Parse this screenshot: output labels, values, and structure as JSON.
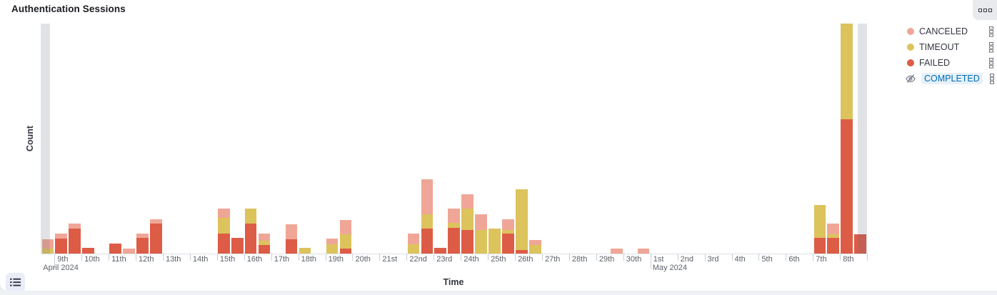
{
  "panel": {
    "title": "Authentication Sessions",
    "options_button_label": "panel options",
    "legend_toggle_label": "toggle legend"
  },
  "legend": {
    "position": "right",
    "items": [
      {
        "label": "CANCELED",
        "color": "#F0A697",
        "visible": true
      },
      {
        "label": "TIMEOUT",
        "color": "#DCC35C",
        "visible": true
      },
      {
        "label": "FAILED",
        "color": "#DD5C46",
        "visible": true
      },
      {
        "label": "COMPLETED",
        "color": "#6092C0",
        "visible": false,
        "highlighted": true
      }
    ]
  },
  "chart_data": {
    "type": "bar",
    "stacked": true,
    "title": "Authentication Sessions",
    "xlabel": "Time",
    "ylabel": "Count",
    "y_tick_labels_shown": false,
    "values_unit": "relative height units (y axis has no numeric tick labels)",
    "ylim": [
      0,
      322
    ],
    "x_range": {
      "start": "2024-04-08 12:00",
      "end": "2024-05-09 00:00",
      "bucket_interval": "12h"
    },
    "series_order_bottom_to_top": [
      "FAILED",
      "TIMEOUT",
      "CANCELED"
    ],
    "hidden_series": [
      "COMPLETED"
    ],
    "x_axis": {
      "ticks": [
        {
          "label": "9th",
          "day": 1,
          "sub": "April 2024"
        },
        {
          "label": "10th",
          "day": 2
        },
        {
          "label": "11th",
          "day": 3
        },
        {
          "label": "12th",
          "day": 4
        },
        {
          "label": "13th",
          "day": 5
        },
        {
          "label": "14th",
          "day": 6
        },
        {
          "label": "15th",
          "day": 7
        },
        {
          "label": "16th",
          "day": 8
        },
        {
          "label": "17th",
          "day": 9
        },
        {
          "label": "18th",
          "day": 10
        },
        {
          "label": "19th",
          "day": 11
        },
        {
          "label": "20th",
          "day": 12
        },
        {
          "label": "21st",
          "day": 13
        },
        {
          "label": "22nd",
          "day": 14
        },
        {
          "label": "23rd",
          "day": 15
        },
        {
          "label": "24th",
          "day": 16
        },
        {
          "label": "25th",
          "day": 17
        },
        {
          "label": "26th",
          "day": 18
        },
        {
          "label": "27th",
          "day": 19
        },
        {
          "label": "28th",
          "day": 20
        },
        {
          "label": "29th",
          "day": 21
        },
        {
          "label": "30th",
          "day": 22
        },
        {
          "label": "1st",
          "day": 23,
          "sub": "May 2024"
        },
        {
          "label": "2nd",
          "day": 24
        },
        {
          "label": "3rd",
          "day": 25
        },
        {
          "label": "4th",
          "day": 26
        },
        {
          "label": "5th",
          "day": 27
        },
        {
          "label": "6th",
          "day": 28
        },
        {
          "label": "7th",
          "day": 29
        },
        {
          "label": "8th",
          "day": 30
        }
      ],
      "month_labels": [
        {
          "label": "April 2024",
          "x_day": 0.5
        },
        {
          "label": "May 2024",
          "x_day": 23
        }
      ]
    },
    "buckets": [
      {
        "date": "Apr 8 PM",
        "day": 0,
        "half": 1,
        "failed": 0,
        "timeout": 7,
        "canceled": 13,
        "partial": true
      },
      {
        "date": "Apr 9 AM",
        "day": 1,
        "half": 0,
        "failed": 21,
        "timeout": 0,
        "canceled": 7
      },
      {
        "date": "Apr 9 PM",
        "day": 1,
        "half": 1,
        "failed": 35,
        "timeout": 0,
        "canceled": 7
      },
      {
        "date": "Apr 10 AM",
        "day": 2,
        "half": 0,
        "failed": 8,
        "timeout": 0,
        "canceled": 0
      },
      {
        "date": "Apr 11 AM",
        "day": 3,
        "half": 0,
        "failed": 14,
        "timeout": 0,
        "canceled": 0
      },
      {
        "date": "Apr 11 PM",
        "day": 3,
        "half": 1,
        "failed": 0,
        "timeout": 0,
        "canceled": 7
      },
      {
        "date": "Apr 12 AM",
        "day": 4,
        "half": 0,
        "failed": 22,
        "timeout": 0,
        "canceled": 6
      },
      {
        "date": "Apr 12 PM",
        "day": 4,
        "half": 1,
        "failed": 42,
        "timeout": 0,
        "canceled": 6
      },
      {
        "date": "Apr 15 AM",
        "day": 7,
        "half": 0,
        "failed": 28,
        "timeout": 22,
        "canceled": 13
      },
      {
        "date": "Apr 15 PM",
        "day": 7,
        "half": 1,
        "failed": 22,
        "timeout": 0,
        "canceled": 0
      },
      {
        "date": "Apr 16 AM",
        "day": 8,
        "half": 0,
        "failed": 42,
        "timeout": 21,
        "canceled": 0
      },
      {
        "date": "Apr 16 PM",
        "day": 8,
        "half": 1,
        "failed": 12,
        "timeout": 6,
        "canceled": 10
      },
      {
        "date": "Apr 17 PM",
        "day": 9,
        "half": 1,
        "failed": 20,
        "timeout": 0,
        "canceled": 21
      },
      {
        "date": "Apr 18 AM",
        "day": 10,
        "half": 0,
        "failed": 0,
        "timeout": 8,
        "canceled": 0
      },
      {
        "date": "Apr 19 AM",
        "day": 11,
        "half": 0,
        "failed": 0,
        "timeout": 13,
        "canceled": 8
      },
      {
        "date": "Apr 19 PM",
        "day": 11,
        "half": 1,
        "failed": 7,
        "timeout": 20,
        "canceled": 20
      },
      {
        "date": "Apr 22 AM",
        "day": 14,
        "half": 0,
        "failed": 0,
        "timeout": 13,
        "canceled": 15
      },
      {
        "date": "Apr 22 PM",
        "day": 14,
        "half": 1,
        "failed": 35,
        "timeout": 20,
        "canceled": 49
      },
      {
        "date": "Apr 23 AM",
        "day": 15,
        "half": 0,
        "failed": 8,
        "timeout": 0,
        "canceled": 0
      },
      {
        "date": "Apr 23 PM",
        "day": 15,
        "half": 1,
        "failed": 36,
        "timeout": 7,
        "canceled": 20
      },
      {
        "date": "Apr 24 AM",
        "day": 16,
        "half": 0,
        "failed": 33,
        "timeout": 30,
        "canceled": 20
      },
      {
        "date": "Apr 24 PM",
        "day": 16,
        "half": 1,
        "failed": 0,
        "timeout": 33,
        "canceled": 22
      },
      {
        "date": "Apr 25 AM",
        "day": 17,
        "half": 0,
        "failed": 0,
        "timeout": 35,
        "canceled": 0
      },
      {
        "date": "Apr 25 PM",
        "day": 17,
        "half": 1,
        "failed": 28,
        "timeout": 5,
        "canceled": 15
      },
      {
        "date": "Apr 26 AM",
        "day": 18,
        "half": 0,
        "failed": 5,
        "timeout": 85,
        "canceled": 0
      },
      {
        "date": "Apr 26 PM",
        "day": 18,
        "half": 1,
        "failed": 0,
        "timeout": 12,
        "canceled": 7
      },
      {
        "date": "Apr 29 PM",
        "day": 21,
        "half": 1,
        "failed": 0,
        "timeout": 0,
        "canceled": 7
      },
      {
        "date": "Apr 30 PM",
        "day": 22,
        "half": 1,
        "failed": 0,
        "timeout": 0,
        "canceled": 7
      },
      {
        "date": "May 7 AM",
        "day": 29,
        "half": 0,
        "failed": 22,
        "timeout": 46,
        "canceled": 0
      },
      {
        "date": "May 7 PM",
        "day": 29,
        "half": 1,
        "failed": 22,
        "timeout": 5,
        "canceled": 15
      },
      {
        "date": "May 8 AM",
        "day": 30,
        "half": 0,
        "failed": 188,
        "timeout": 134,
        "canceled": 0
      },
      {
        "date": "May 8 PM",
        "day": 30,
        "half": 1,
        "failed": 27,
        "timeout": 0,
        "canceled": 0,
        "partial": true
      }
    ],
    "partial_bucket_markers": {
      "color": "rgba(105,112,125,0.2)",
      "positions": [
        "left-edge",
        "right-edge"
      ]
    }
  }
}
